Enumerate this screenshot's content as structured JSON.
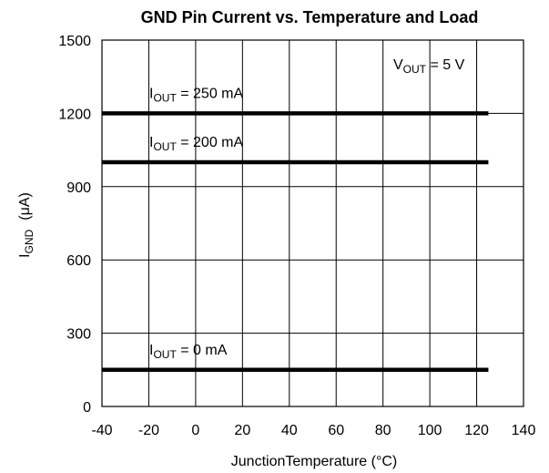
{
  "chart_data": {
    "type": "line",
    "title": "GND Pin Current vs. Temperature and Load",
    "xlabel": "JunctionTemperature (°C)",
    "ylabel": {
      "main": "I",
      "sub": "GND",
      "unit": "(μA)"
    },
    "xlim": [
      -40,
      140
    ],
    "ylim": [
      0,
      1500
    ],
    "xticks": [
      -40,
      -20,
      0,
      20,
      40,
      60,
      80,
      100,
      120,
      140
    ],
    "yticks": [
      0,
      300,
      600,
      900,
      1200,
      1500
    ],
    "grid": true,
    "series": [
      {
        "name": {
          "main": "I",
          "sub": "OUT",
          "rest": " = 250 mA"
        },
        "x": [
          -40,
          125
        ],
        "y": [
          1200,
          1200
        ]
      },
      {
        "name": {
          "main": "I",
          "sub": "OUT",
          "rest": " = 200 mA"
        },
        "x": [
          -40,
          125
        ],
        "y": [
          1000,
          1000
        ]
      },
      {
        "name": {
          "main": "I",
          "sub": "OUT",
          "rest": " = 0 mA"
        },
        "x": [
          -40,
          125
        ],
        "y": [
          150,
          150
        ]
      }
    ],
    "annotations": [
      {
        "main": "V",
        "sub": "OUT",
        "rest": " = 5 V"
      }
    ]
  }
}
